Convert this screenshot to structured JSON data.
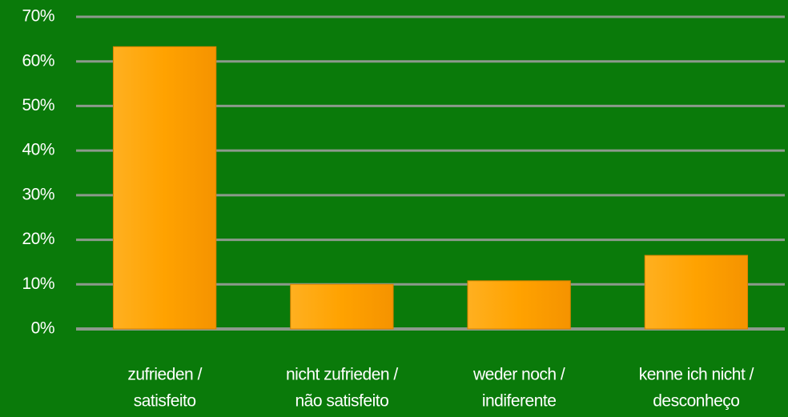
{
  "chart_data": {
    "type": "bar",
    "categories": [
      [
        "zufrieden /",
        "satisfeito"
      ],
      [
        "nicht zufrieden /",
        "não satisfeito"
      ],
      [
        "weder noch /",
        "indiferente"
      ],
      [
        "kenne ich nicht /",
        "desconheço"
      ]
    ],
    "values": [
      63.3,
      10,
      10.8,
      16.5
    ],
    "color": "#ffa200",
    "ylim": [
      0,
      70
    ],
    "yticks": [
      {
        "value": 0,
        "label": "0%"
      },
      {
        "value": 10,
        "label": "10%"
      },
      {
        "value": 20,
        "label": "20%"
      },
      {
        "value": 30,
        "label": "30%"
      },
      {
        "value": 40,
        "label": "40%"
      },
      {
        "value": 50,
        "label": "50%"
      },
      {
        "value": 60,
        "label": "60%"
      },
      {
        "value": 70,
        "label": "70%"
      }
    ],
    "grid": true
  }
}
